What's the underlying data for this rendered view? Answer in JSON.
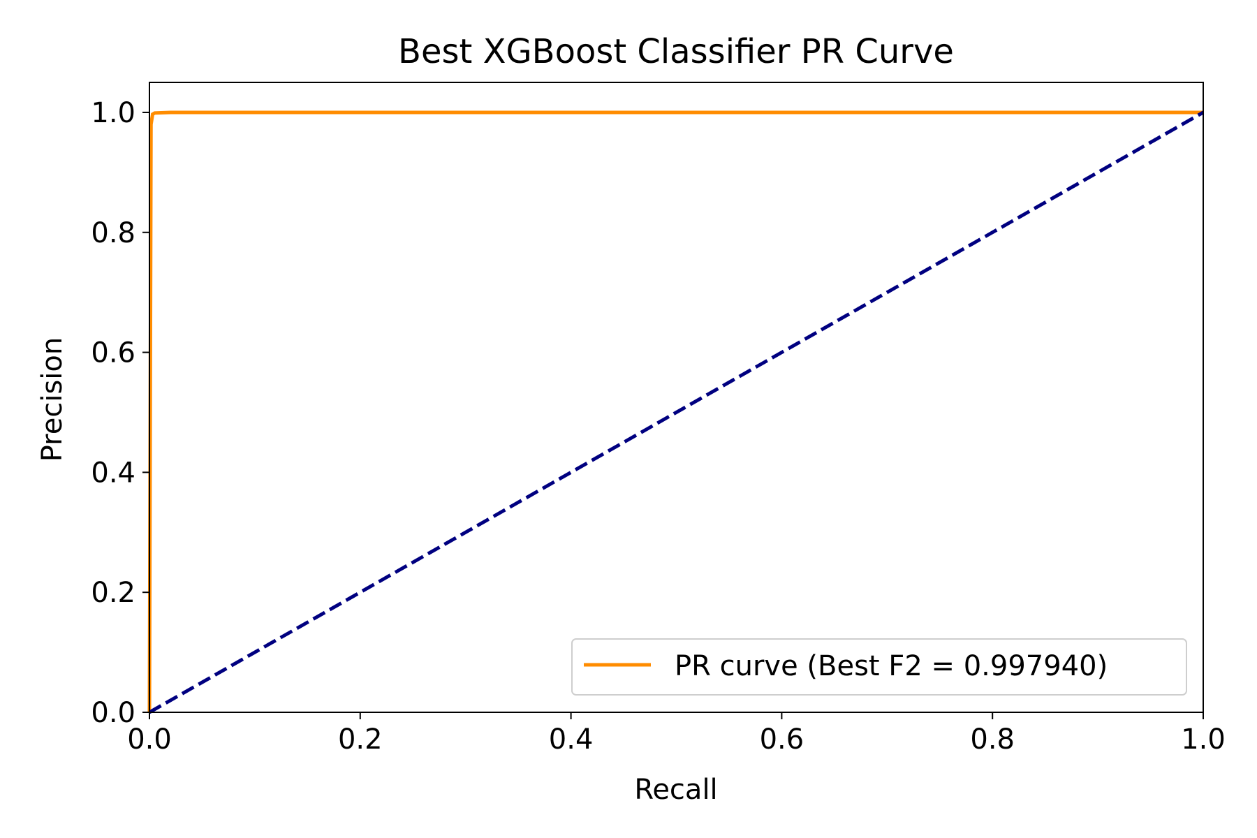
{
  "chart_data": {
    "type": "line",
    "title": "Best XGBoost Classifier PR Curve",
    "xlabel": "Recall",
    "ylabel": "Precision",
    "xlim": [
      0.0,
      1.0
    ],
    "ylim": [
      0.0,
      1.05
    ],
    "x_ticks": [
      "0.0",
      "0.2",
      "0.4",
      "0.6",
      "0.8",
      "1.0"
    ],
    "y_ticks": [
      "0.0",
      "0.2",
      "0.4",
      "0.6",
      "0.8",
      "1.0"
    ],
    "grid": false,
    "legend_position": "lower-right",
    "series": [
      {
        "name": "PR curve (Best F2 = 0.997940)",
        "color": "#ff8c00",
        "style": "solid",
        "x": [
          0.0,
          0.0015,
          0.003,
          0.005,
          0.02,
          0.1,
          0.5,
          1.0
        ],
        "y": [
          0.0,
          0.98,
          0.997,
          0.999,
          1.0,
          1.0,
          1.0,
          1.0
        ]
      },
      {
        "color": "#000080",
        "style": "dashed",
        "x": [
          0.0,
          1.0
        ],
        "y": [
          0.0,
          1.0
        ]
      }
    ]
  }
}
